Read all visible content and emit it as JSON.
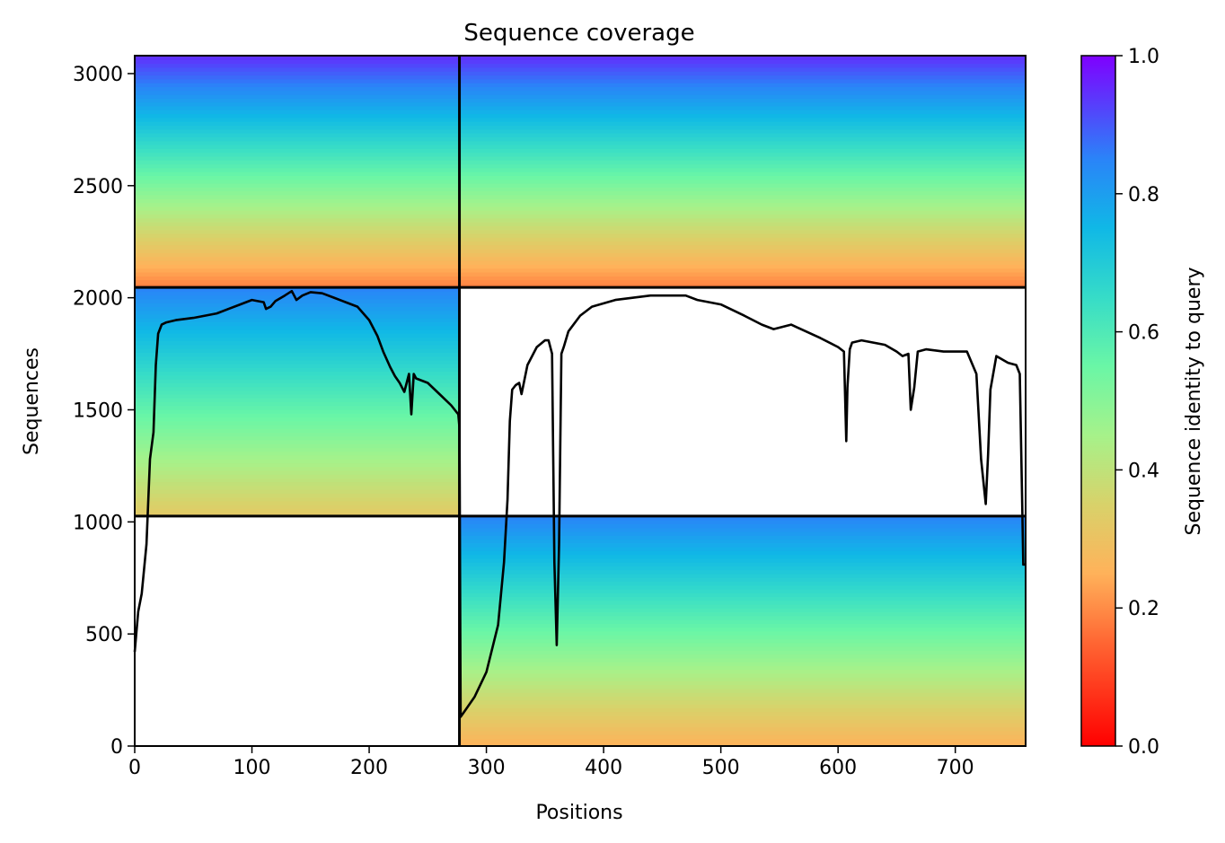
{
  "chart_data": {
    "type": "heatmap",
    "title": "Sequence coverage",
    "xlabel": "Positions",
    "ylabel": "Sequences",
    "xlim": [
      0,
      760
    ],
    "ylim": [
      0,
      3080
    ],
    "x_ticks": [
      0,
      100,
      200,
      300,
      400,
      500,
      600,
      700
    ],
    "y_ticks": [
      0,
      500,
      1000,
      1500,
      2000,
      2500,
      3000
    ],
    "grid": false,
    "colormap": "rainbow_r",
    "colorbar": {
      "label": "Sequence identity to query",
      "range": [
        0,
        1
      ],
      "ticks": [
        "0.0",
        "0.2",
        "0.4",
        "0.6",
        "0.8",
        "1.0"
      ]
    },
    "block_divisions": {
      "x": [
        277
      ],
      "y": [
        1026,
        2046
      ]
    },
    "blocks": [
      {
        "x_range": [
          0,
          277
        ],
        "y_range": [
          2046,
          3080
        ],
        "coverage": "filled",
        "identity_top": 0.95,
        "identity_bottom": 0.18
      },
      {
        "x_range": [
          277,
          760
        ],
        "y_range": [
          2046,
          3080
        ],
        "coverage": "filled",
        "identity_top": 0.95,
        "identity_bottom": 0.18
      },
      {
        "x_range": [
          0,
          277
        ],
        "y_range": [
          1026,
          2046
        ],
        "coverage": "filled",
        "identity_top": 0.85,
        "identity_bottom": 0.32
      },
      {
        "x_range": [
          277,
          760
        ],
        "y_range": [
          1026,
          2046
        ],
        "coverage": "empty"
      },
      {
        "x_range": [
          0,
          277
        ],
        "y_range": [
          0,
          1026
        ],
        "coverage": "empty"
      },
      {
        "x_range": [
          277,
          760
        ],
        "y_range": [
          0,
          1026
        ],
        "coverage": "filled",
        "identity_top": 0.85,
        "identity_bottom": 0.25
      }
    ],
    "series": [
      {
        "type": "line",
        "color": "#000000",
        "x": [
          0,
          3,
          6,
          10,
          13,
          16,
          18,
          20,
          23,
          27,
          35,
          50,
          70,
          90,
          100,
          110,
          112,
          116,
          120,
          128,
          134,
          138,
          143,
          150,
          160,
          170,
          180,
          190,
          200,
          207,
          212,
          218,
          222,
          226,
          230,
          234,
          236,
          238,
          240,
          250,
          262,
          270,
          276,
          277,
          278,
          282,
          290,
          300,
          310,
          315,
          318,
          320,
          322,
          325,
          328,
          330,
          335,
          343,
          350,
          353,
          356,
          358,
          360,
          362,
          364,
          366,
          370,
          380,
          390,
          410,
          440,
          470,
          480,
          500,
          520,
          535,
          545,
          560,
          585,
          600,
          605,
          607,
          608,
          610,
          612,
          620,
          640,
          650,
          655,
          660,
          662,
          665,
          668,
          675,
          690,
          710,
          718,
          722,
          726,
          728,
          730,
          735,
          745,
          752,
          755,
          757,
          758,
          760
        ],
        "y": [
          420,
          600,
          680,
          900,
          1280,
          1400,
          1700,
          1840,
          1880,
          1890,
          1900,
          1910,
          1930,
          1970,
          1990,
          1980,
          1950,
          1960,
          1985,
          2010,
          2030,
          1990,
          2010,
          2025,
          2020,
          2000,
          1980,
          1960,
          1900,
          1830,
          1760,
          1690,
          1650,
          1620,
          1580,
          1660,
          1480,
          1660,
          1640,
          1620,
          1560,
          1520,
          1480,
          1420,
          130,
          160,
          220,
          330,
          540,
          820,
          1100,
          1450,
          1590,
          1610,
          1620,
          1570,
          1700,
          1780,
          1810,
          1810,
          1750,
          820,
          450,
          900,
          1750,
          1780,
          1850,
          1920,
          1960,
          1990,
          2010,
          2010,
          1990,
          1970,
          1920,
          1880,
          1860,
          1880,
          1820,
          1780,
          1760,
          1360,
          1600,
          1770,
          1800,
          1810,
          1790,
          1760,
          1740,
          1750,
          1500,
          1600,
          1760,
          1770,
          1760,
          1760,
          1660,
          1280,
          1080,
          1300,
          1590,
          1740,
          1710,
          1700,
          1660,
          1100,
          810,
          810
        ]
      }
    ]
  }
}
